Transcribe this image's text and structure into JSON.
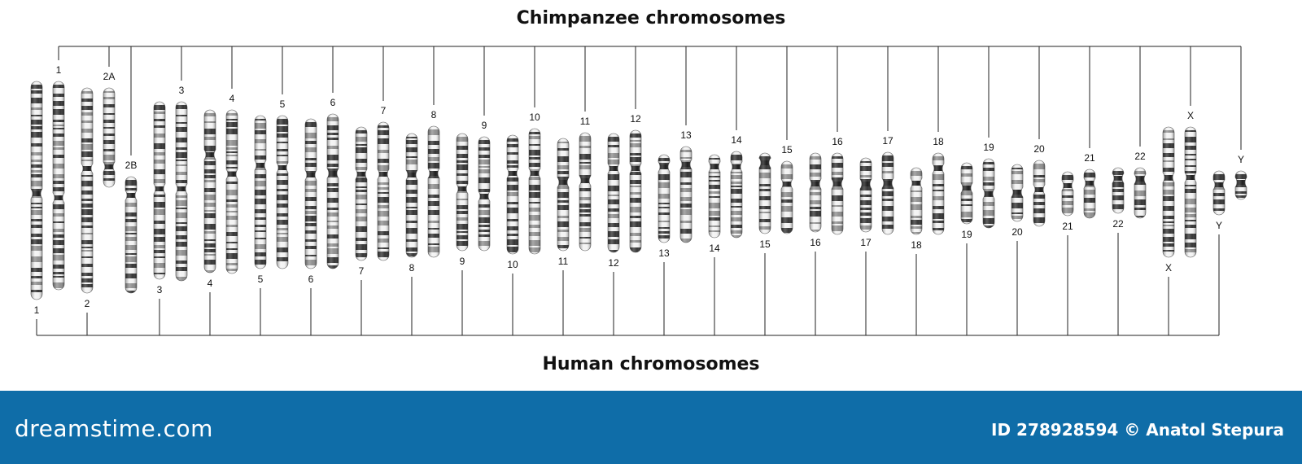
{
  "titles": {
    "top": "Chimpanzee chromosomes",
    "bottom": "Human chromosomes"
  },
  "footer": {
    "logo": "dreamstime.com",
    "credit": "ID 278928594 © Anatol Stepura",
    "background": "#0f6da8"
  },
  "chimp_labels": [
    "1",
    "2A",
    "2B",
    "3",
    "4",
    "5",
    "6",
    "7",
    "8",
    "9",
    "10",
    "11",
    "12",
    "13",
    "14",
    "15",
    "16",
    "17",
    "18",
    "19",
    "20",
    "21",
    "22",
    "X",
    "Y"
  ],
  "human_labels": [
    "1",
    "2",
    "3",
    "4",
    "5",
    "6",
    "7",
    "8",
    "9",
    "10",
    "11",
    "12",
    "13",
    "14",
    "15",
    "16",
    "17",
    "18",
    "19",
    "20",
    "21",
    "22",
    "X",
    "Y"
  ],
  "colors": {
    "band_dark": "#2b2b2b",
    "band_light": "#f2f2f2",
    "line": "#222222"
  }
}
